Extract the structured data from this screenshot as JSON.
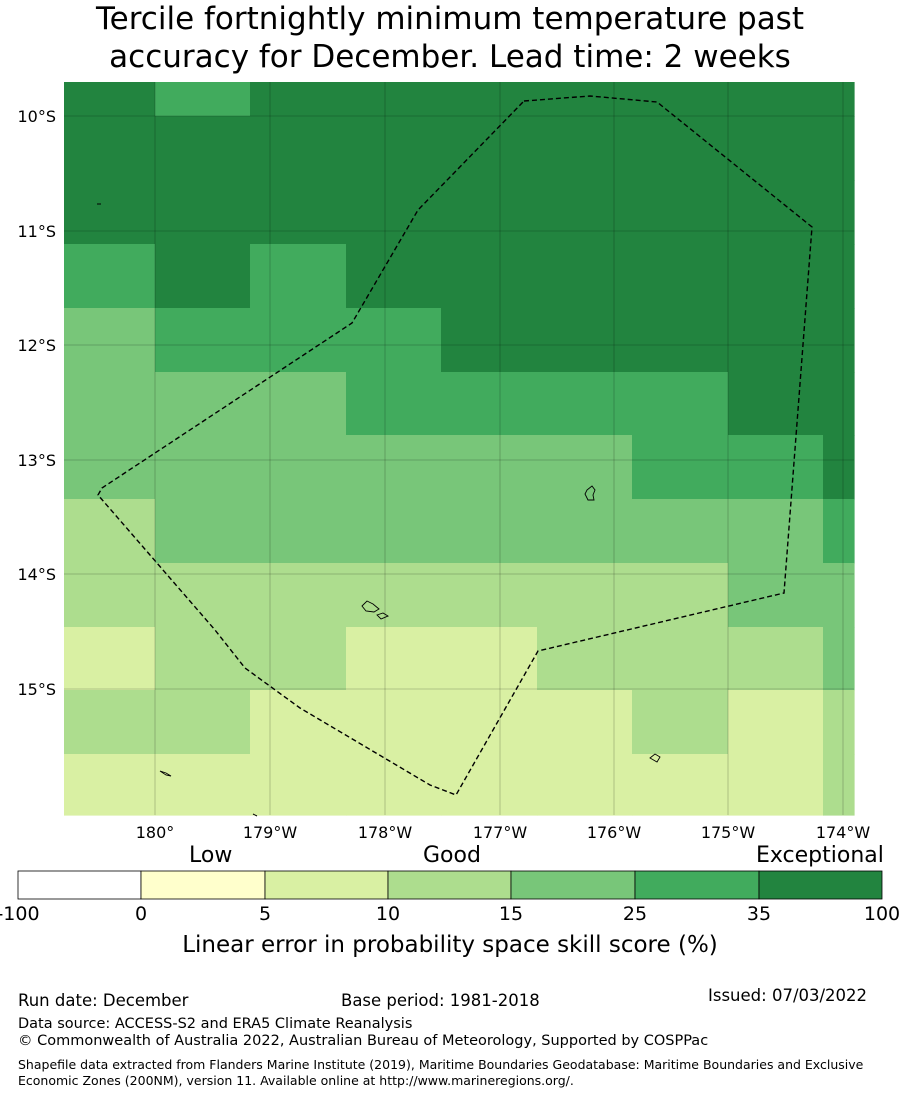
{
  "title": {
    "line1": "Tercile fortnightly minimum temperature past",
    "line2": "accuracy for December. Lead time: 2 weeks"
  },
  "map": {
    "lat_labels": [
      "10°S",
      "11°S",
      "12°S",
      "13°S",
      "14°S",
      "15°S"
    ],
    "lon_labels": [
      "180°",
      "179°W",
      "178°W",
      "177°W",
      "176°W",
      "175°W",
      "174°W"
    ],
    "grid_colors": [
      [
        "#22843f",
        "#41ab5d",
        "#22843f",
        "#22843f",
        "#22843f",
        "#22843f",
        "#22843f",
        "#22843f",
        "#22843f"
      ],
      [
        "#22843f",
        "#22843f",
        "#22843f",
        "#22843f",
        "#22843f",
        "#22843f",
        "#22843f",
        "#22843f",
        "#22843f"
      ],
      [
        "#22843f",
        "#22843f",
        "#22843f",
        "#22843f",
        "#22843f",
        "#22843f",
        "#22843f",
        "#22843f",
        "#22843f"
      ],
      [
        "#41ab5d",
        "#22843f",
        "#41ab5d",
        "#22843f",
        "#22843f",
        "#22843f",
        "#22843f",
        "#22843f",
        "#22843f"
      ],
      [
        "#78c679",
        "#41ab5d",
        "#41ab5d",
        "#41ab5d",
        "#22843f",
        "#22843f",
        "#22843f",
        "#22843f",
        "#22843f"
      ],
      [
        "#78c679",
        "#78c679",
        "#78c679",
        "#41ab5d",
        "#41ab5d",
        "#41ab5d",
        "#41ab5d",
        "#22843f",
        "#22843f"
      ],
      [
        "#78c679",
        "#78c679",
        "#78c679",
        "#78c679",
        "#78c679",
        "#78c679",
        "#41ab5d",
        "#41ab5d",
        "#22843f"
      ],
      [
        "#addd8e",
        "#78c679",
        "#78c679",
        "#78c679",
        "#78c679",
        "#78c679",
        "#78c679",
        "#78c679",
        "#41ab5d"
      ],
      [
        "#addd8e",
        "#addd8e",
        "#addd8e",
        "#addd8e",
        "#addd8e",
        "#addd8e",
        "#addd8e",
        "#78c679",
        "#78c679"
      ],
      [
        "#d9f0a3",
        "#addd8e",
        "#addd8e",
        "#d9f0a3",
        "#d9f0a3",
        "#addd8e",
        "#addd8e",
        "#addd8e",
        "#78c679"
      ],
      [
        "#addd8e",
        "#addd8e",
        "#d9f0a3",
        "#d9f0a3",
        "#d9f0a3",
        "#d9f0a3",
        "#addd8e",
        "#d9f0a3",
        "#addd8e"
      ],
      [
        "#d9f0a3",
        "#d9f0a3",
        "#d9f0a3",
        "#d9f0a3",
        "#d9f0a3",
        "#d9f0a3",
        "#d9f0a3",
        "#d9f0a3",
        "#addd8e"
      ]
    ]
  },
  "colorbar": {
    "category_low": "Low",
    "category_good": "Good",
    "category_exceptional": "Exceptional",
    "ticks": [
      "-100",
      "0",
      "5",
      "10",
      "15",
      "25",
      "35",
      "100"
    ],
    "colors": [
      "#ffffff",
      "#ffffcc",
      "#d9f0a3",
      "#addd8e",
      "#78c679",
      "#41ab5d",
      "#22843f"
    ],
    "label": "Linear error in probability space skill score (%)"
  },
  "footer": {
    "run_date": "Run date: December",
    "base_period": "Base period: 1981-2018",
    "issued": "Issued: 07/03/2022",
    "data_source": "Data source: ACCESS-S2 and ERA5 Climate Reanalysis",
    "copyright": "© Commonwealth of Australia 2022, Australian Bureau of Meteorology, Supported by COSPPac",
    "shapefile": "Shapefile data extracted from Flanders Marine Institute (2019), Maritime Boundaries Geodatabase: Maritime Boundaries and Exclusive Economic Zones (200NM), version 11. Available online at http://www.marineregions.org/."
  }
}
